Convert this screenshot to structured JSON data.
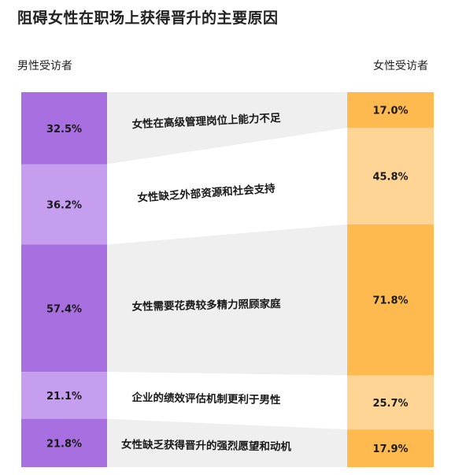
{
  "title": "阻碍女性在职场上获得晋升的主要原因",
  "chart_data": {
    "type": "bar",
    "subtype": "paired-stacked-comparison",
    "left_label": "男性受访者",
    "right_label": "女性受访者",
    "categories": [
      "女性在高级管理岗位上能力不足",
      "女性缺乏外部资源和社会支持",
      "女性需要花费较多精力照顾家庭",
      "企业的绩效评估机制更利于男性",
      "女性缺乏获得晋升的强烈愿望和动机"
    ],
    "series": [
      {
        "name": "男性受访者",
        "values": [
          32.5,
          36.2,
          57.4,
          21.1,
          21.8
        ],
        "labels": [
          "32.5%",
          "36.2%",
          "57.4%",
          "21.1%",
          "21.8%"
        ]
      },
      {
        "name": "女性受访者",
        "values": [
          17.0,
          45.8,
          71.8,
          25.7,
          17.9
        ],
        "labels": [
          "17.0%",
          "45.8%",
          "71.8%",
          "25.7%",
          "17.9%"
        ]
      }
    ],
    "colors": {
      "male": [
        "#a86fe0",
        "#c59ef0"
      ],
      "female": [
        "#ffba4f",
        "#ffd596"
      ],
      "band": [
        "#efefef",
        "#ffffff"
      ]
    }
  }
}
